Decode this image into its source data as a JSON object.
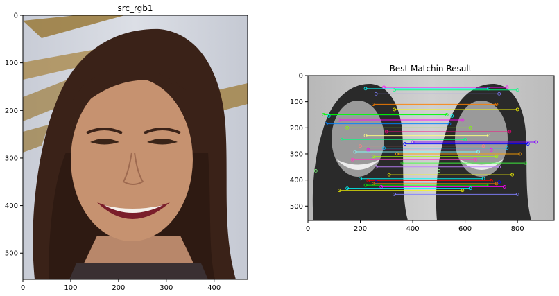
{
  "chart_data": [
    {
      "type": "image",
      "title": "src_rgb1",
      "xlim": [
        0,
        470
      ],
      "ylim": [
        555,
        0
      ],
      "xticks": [
        0,
        100,
        200,
        300,
        400
      ],
      "yticks": [
        0,
        100,
        200,
        300,
        400,
        500
      ],
      "content": "color portrait photo"
    },
    {
      "type": "image",
      "title": "Best Matchin Result",
      "xlim": [
        0,
        940
      ],
      "ylim": [
        555,
        0
      ],
      "xticks": [
        0,
        200,
        400,
        600,
        800
      ],
      "yticks": [
        0,
        100,
        200,
        300,
        400,
        500
      ],
      "content": "grayscale side-by-side portraits with feature match lines",
      "match_offset_x": 470,
      "matches": [
        {
          "y": 45,
          "x1": 290,
          "color": "#ff00ff"
        },
        {
          "y": 50,
          "x1": 220,
          "color": "#00ffff"
        },
        {
          "y": 55,
          "x1": 330,
          "color": "#00ff80"
        },
        {
          "y": 70,
          "x1": 260,
          "color": "#8080ff"
        },
        {
          "y": 110,
          "x1": 250,
          "color": "#ff8000"
        },
        {
          "y": 130,
          "x1": 330,
          "color": "#ffff00"
        },
        {
          "y": 150,
          "x1": 60,
          "color": "#00ff00"
        },
        {
          "y": 155,
          "x1": 80,
          "color": "#00ffff"
        },
        {
          "y": 170,
          "x1": 120,
          "color": "#ff00ff"
        },
        {
          "y": 185,
          "x1": 70,
          "color": "#0080ff"
        },
        {
          "y": 200,
          "x1": 150,
          "color": "#80ff00"
        },
        {
          "y": 215,
          "x1": 300,
          "color": "#ff0080"
        },
        {
          "y": 230,
          "x1": 220,
          "color": "#ffff80"
        },
        {
          "y": 245,
          "x1": 130,
          "color": "#00ff80"
        },
        {
          "y": 255,
          "x1": 400,
          "color": "#8000ff"
        },
        {
          "y": 262,
          "x1": 370,
          "color": "#0000ff"
        },
        {
          "y": 270,
          "x1": 200,
          "color": "#ff8080"
        },
        {
          "y": 278,
          "x1": 290,
          "color": "#00c0ff"
        },
        {
          "y": 285,
          "x1": 230,
          "color": "#ff00ff"
        },
        {
          "y": 292,
          "x1": 180,
          "color": "#80ffff"
        },
        {
          "y": 300,
          "x1": 340,
          "color": "#ffa000"
        },
        {
          "y": 310,
          "x1": 250,
          "color": "#a0ff00"
        },
        {
          "y": 322,
          "x1": 170,
          "color": "#ff40c0"
        },
        {
          "y": 335,
          "x1": 360,
          "color": "#40ff40"
        },
        {
          "y": 350,
          "x1": 260,
          "color": "#c080ff"
        },
        {
          "y": 365,
          "x1": 30,
          "color": "#80ff80"
        },
        {
          "y": 380,
          "x1": 310,
          "color": "#ffff00"
        },
        {
          "y": 395,
          "x1": 200,
          "color": "#00ffff"
        },
        {
          "y": 402,
          "x1": 230,
          "color": "#ff0000"
        },
        {
          "y": 408,
          "x1": 260,
          "color": "#0000ff"
        },
        {
          "y": 414,
          "x1": 250,
          "color": "#ff8000"
        },
        {
          "y": 420,
          "x1": 220,
          "color": "#00ff00"
        },
        {
          "y": 426,
          "x1": 280,
          "color": "#ff00ff"
        },
        {
          "y": 432,
          "x1": 150,
          "color": "#00ffff"
        },
        {
          "y": 440,
          "x1": 120,
          "color": "#ffff00"
        },
        {
          "y": 455,
          "x1": 330,
          "color": "#8080ff"
        }
      ]
    }
  ]
}
